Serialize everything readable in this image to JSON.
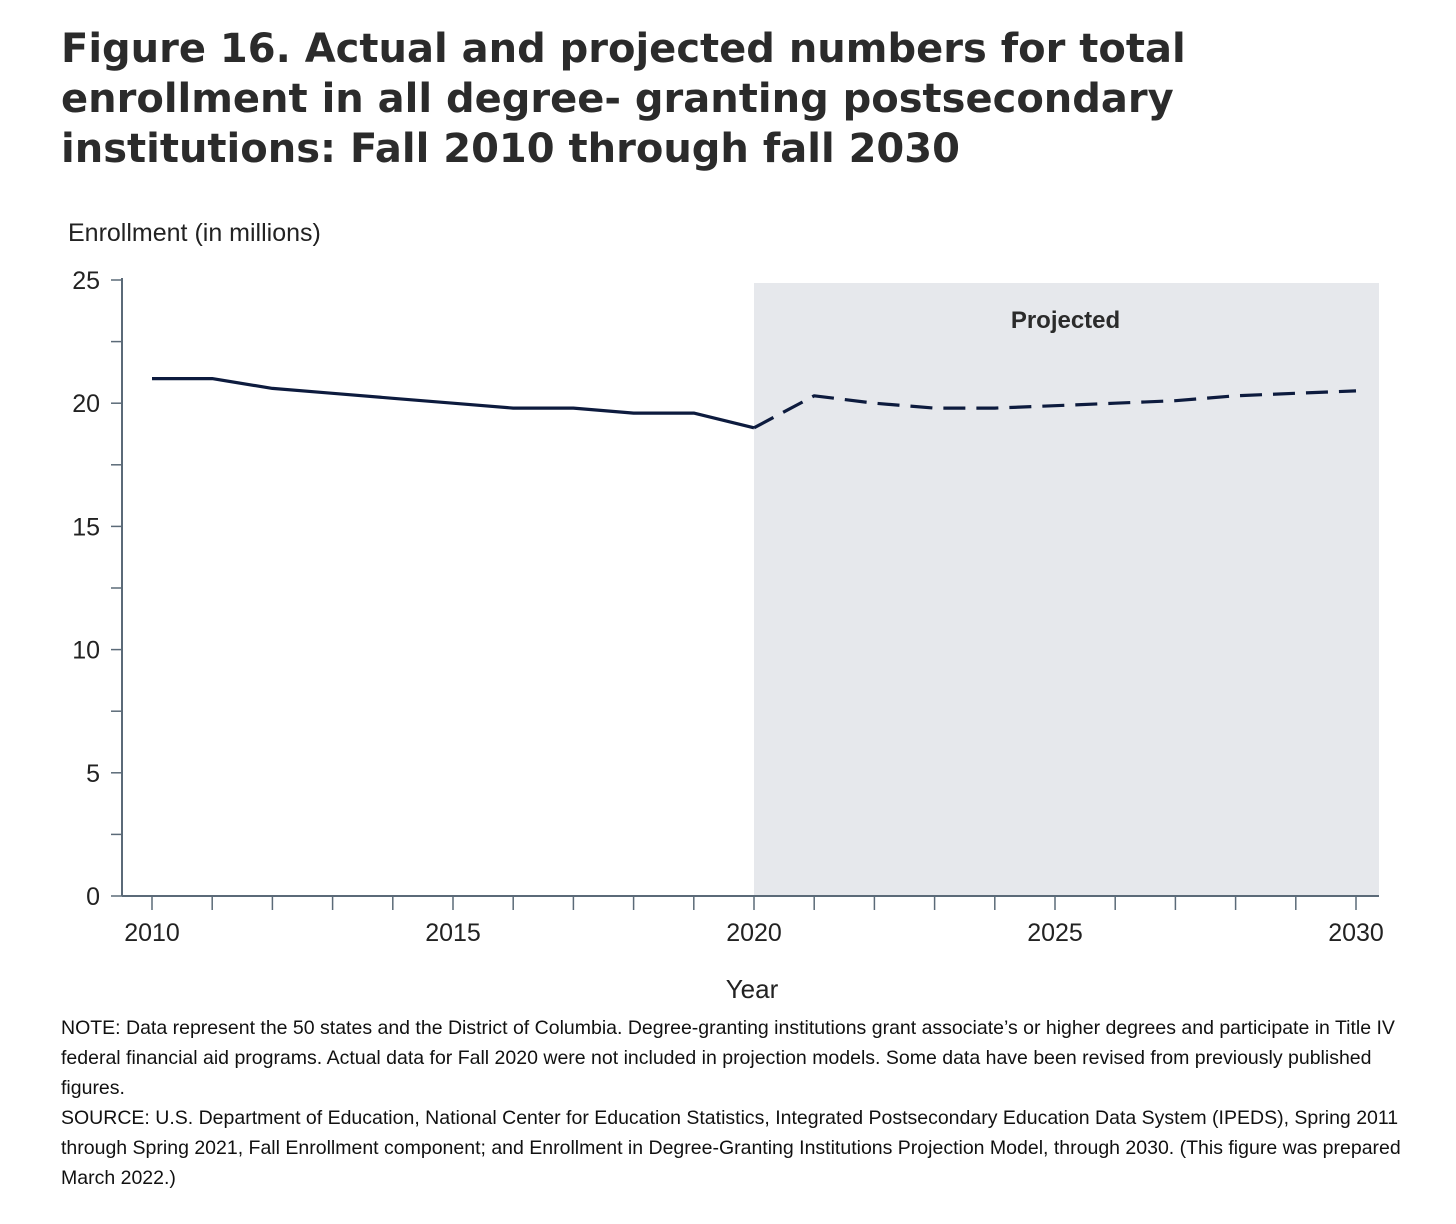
{
  "figure": {
    "title": "Figure 16. Actual and projected numbers for total enrollment in all degree- granting postsecondary institutions: Fall 2010 through fall 2030",
    "note": "NOTE: Data represent the 50 states and the District of Columbia. Degree-granting institutions grant associate’s or higher degrees and participate in Title IV federal financial aid programs. Actual data for Fall 2020 were not included in projection models. Some data have been revised from previously published figures.",
    "source": "SOURCE: U.S. Department of Education, National Center for Education Statistics, Integrated Postsecondary Education Data System (IPEDS), Spring 2011 through Spring 2021, Fall Enrollment component; and Enrollment in Degree-Granting Institutions Projection Model, through 2030. (This figure was prepared March 2022.)"
  },
  "colors": {
    "line": "#0d1b3e",
    "projected_band": "#e6e8ec",
    "axis": "#5b6a78",
    "text": "#222222"
  },
  "chart_data": {
    "type": "line",
    "title": "Figure 16. Actual and projected numbers for total enrollment in all degree- granting postsecondary institutions: Fall 2010 through fall 2030",
    "ylabel": "Enrollment (in millions)",
    "xlabel": "Year",
    "ylim": [
      0,
      25
    ],
    "xlim": [
      2010,
      2030
    ],
    "y_ticks": [
      0,
      5,
      10,
      15,
      20,
      25
    ],
    "x_ticks": [
      2010,
      2015,
      2020,
      2025,
      2030
    ],
    "grid": false,
    "projected_region": {
      "label": "Projected",
      "from": 2020,
      "to": 2030
    },
    "series": [
      {
        "style": "solid",
        "x": [
          2010,
          2011,
          2012,
          2013,
          2014,
          2015,
          2016,
          2017,
          2018,
          2019,
          2020
        ],
        "values": [
          21.0,
          21.0,
          20.6,
          20.4,
          20.2,
          20.0,
          19.8,
          19.8,
          19.6,
          19.6,
          19.0
        ]
      },
      {
        "style": "dashed",
        "x": [
          2020,
          2021,
          2022,
          2023,
          2024,
          2025,
          2026,
          2027,
          2028,
          2029,
          2030
        ],
        "values": [
          19.0,
          20.3,
          20.0,
          19.8,
          19.8,
          19.9,
          20.0,
          20.1,
          20.3,
          20.4,
          20.5
        ]
      }
    ]
  }
}
